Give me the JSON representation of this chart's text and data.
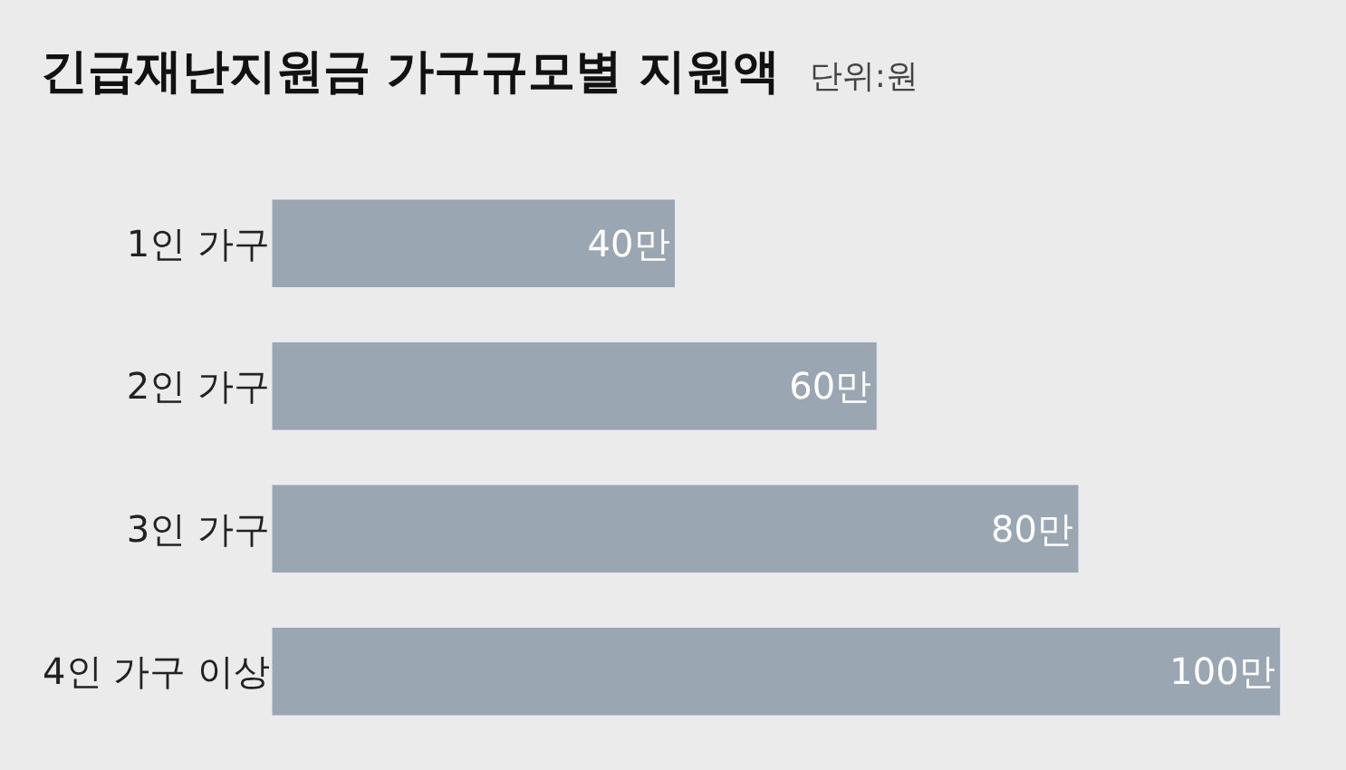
{
  "chart_data": {
    "type": "bar",
    "orientation": "horizontal",
    "title": "긴급재난지원금 가구규모별 지원액",
    "subtitle": "단위:원",
    "categories": [
      "1인 가구",
      "2인 가구",
      "3인 가구",
      "4인 가구 이상"
    ],
    "values": [
      40,
      60,
      80,
      100
    ],
    "color": "#9ba6b3",
    "value_labels": [
      "40만",
      "60만",
      "80만",
      "100만"
    ],
    "grid": false,
    "legend": false
  }
}
